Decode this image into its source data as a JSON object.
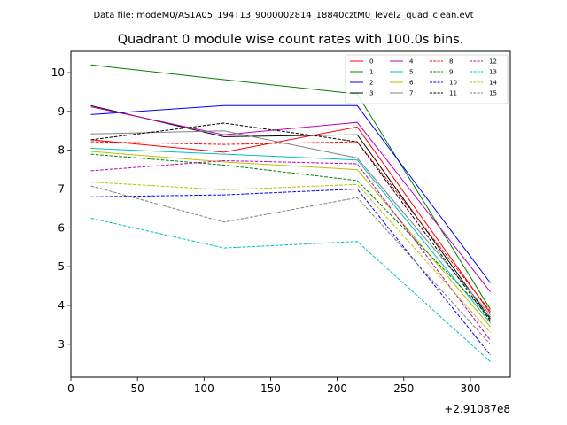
{
  "suptitle": "Data file: modeM0/AS1A05_194T13_9000002814_18840cztM0_level2_quad_clean.evt",
  "chart_data": {
    "type": "line",
    "title": "Quadrant 0 module wise count rates with 100.0s bins.",
    "xlabel": "",
    "ylabel": "",
    "x_offset_label": "+2.91087e8",
    "x": [
      15,
      115,
      215,
      315
    ],
    "xlim": [
      0,
      330
    ],
    "ylim": [
      2.15,
      10.55
    ],
    "xticks": [
      0,
      50,
      100,
      150,
      200,
      250,
      300
    ],
    "yticks": [
      3,
      4,
      5,
      6,
      7,
      8,
      9,
      10
    ],
    "legend_position": "top-right",
    "series": [
      {
        "name": "0",
        "color": "#ff0000",
        "style": "solid",
        "values": [
          8.27,
          7.95,
          8.6,
          3.8
        ]
      },
      {
        "name": "1",
        "color": "#008000",
        "style": "solid",
        "values": [
          10.2,
          9.82,
          9.45,
          3.9
        ]
      },
      {
        "name": "2",
        "color": "#0000ff",
        "style": "solid",
        "values": [
          8.92,
          9.15,
          9.15,
          4.58
        ]
      },
      {
        "name": "3",
        "color": "#000000",
        "style": "solid",
        "values": [
          9.15,
          8.35,
          8.4,
          3.65
        ]
      },
      {
        "name": "4",
        "color": "#bf00bf",
        "style": "solid",
        "values": [
          9.12,
          8.4,
          8.72,
          4.35
        ]
      },
      {
        "name": "5",
        "color": "#00bfbf",
        "style": "solid",
        "values": [
          8.05,
          7.9,
          7.75,
          3.55
        ]
      },
      {
        "name": "6",
        "color": "#bfbf00",
        "style": "solid",
        "values": [
          7.97,
          7.7,
          7.5,
          3.45
        ]
      },
      {
        "name": "7",
        "color": "#808080",
        "style": "solid",
        "values": [
          8.42,
          8.5,
          7.8,
          3.75
        ]
      },
      {
        "name": "8",
        "color": "#ff0000",
        "style": "dashed",
        "values": [
          8.22,
          8.15,
          8.22,
          3.85
        ]
      },
      {
        "name": "9",
        "color": "#008000",
        "style": "dashed",
        "values": [
          7.9,
          7.62,
          7.22,
          3.7
        ]
      },
      {
        "name": "10",
        "color": "#0000ff",
        "style": "dashed",
        "values": [
          6.8,
          6.85,
          7.0,
          2.72
        ]
      },
      {
        "name": "11",
        "color": "#000000",
        "style": "dashed",
        "values": [
          8.27,
          8.7,
          8.22,
          3.6
        ]
      },
      {
        "name": "12",
        "color": "#bf00bf",
        "style": "dashed",
        "values": [
          7.47,
          7.73,
          7.65,
          3.1
        ]
      },
      {
        "name": "13",
        "color": "#00bfbf",
        "style": "dashed",
        "values": [
          6.25,
          5.48,
          5.65,
          2.55
        ]
      },
      {
        "name": "14",
        "color": "#bfbf00",
        "style": "dashed",
        "values": [
          7.18,
          6.98,
          7.12,
          3.3
        ]
      },
      {
        "name": "15",
        "color": "#808080",
        "style": "dashed",
        "values": [
          7.08,
          6.15,
          6.78,
          3.0
        ]
      }
    ]
  }
}
